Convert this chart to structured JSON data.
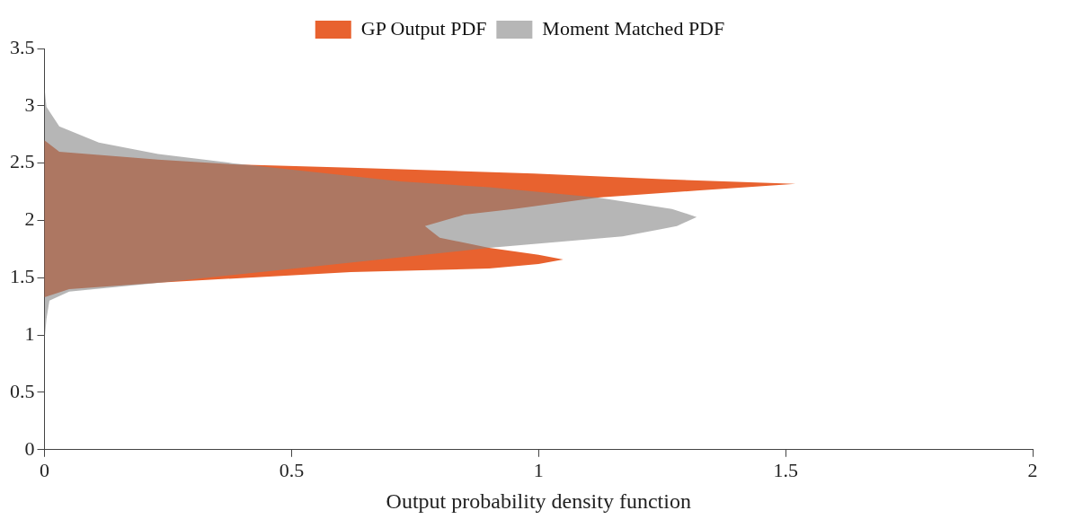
{
  "chart_data": {
    "type": "area",
    "orientation": "horizontal",
    "xlabel": "Output probability density function",
    "xlim": [
      0,
      2
    ],
    "xticks": [
      0,
      0.5,
      1,
      1.5,
      2
    ],
    "ylim": [
      0,
      3.5
    ],
    "yticks": [
      0,
      0.5,
      1,
      1.5,
      2,
      2.5,
      3,
      3.5
    ],
    "grid": false,
    "legend": "top",
    "series": [
      {
        "name": "GP Output PDF",
        "color": "#e8622f",
        "x": [
          1.33,
          1.4,
          1.46,
          1.55,
          1.58,
          1.62,
          1.66,
          1.7,
          1.76,
          1.85,
          1.95,
          2.05,
          2.1,
          2.2,
          2.26,
          2.32,
          2.36,
          2.41,
          2.46,
          2.49,
          2.53,
          2.6,
          2.7
        ],
        "values": [
          0,
          0.05,
          0.24,
          0.62,
          0.9,
          1.0,
          1.05,
          1.0,
          0.9,
          0.8,
          0.77,
          0.85,
          0.95,
          1.12,
          1.32,
          1.52,
          1.25,
          0.99,
          0.62,
          0.38,
          0.23,
          0.03,
          0
        ]
      },
      {
        "name": "Moment Matched PDF",
        "color": "#858585",
        "x": [
          0.95,
          1.14,
          1.3,
          1.38,
          1.46,
          1.6,
          1.76,
          1.86,
          1.95,
          2.03,
          2.1,
          2.2,
          2.29,
          2.34,
          2.5,
          2.58,
          2.68,
          2.82,
          2.99,
          3.16
        ],
        "values": [
          0,
          0.004,
          0.01,
          0.05,
          0.24,
          0.55,
          0.9,
          1.17,
          1.28,
          1.32,
          1.27,
          1.12,
          0.9,
          0.72,
          0.38,
          0.23,
          0.11,
          0.03,
          0.004,
          0
        ]
      }
    ]
  }
}
